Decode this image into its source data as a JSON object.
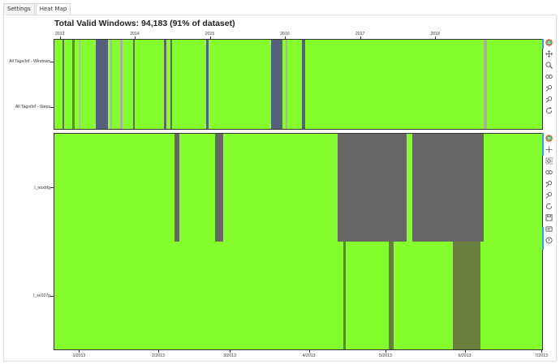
{
  "tabs": [
    {
      "label": "Settings",
      "active": false
    },
    {
      "label": "Heat Map",
      "active": true
    }
  ],
  "title": "Total Valid Windows: 94,183 (91% of dataset)",
  "colors": {
    "valid": "#84ff2d",
    "invalid": "#666666",
    "partial": "#6a7f3e",
    "mixed": "#55607a",
    "light": "#aab09e"
  },
  "top_plot": {
    "rows": [
      "All Tags/Inf - Windows",
      "All Tags/Inf - Steps"
    ],
    "x_ticks": [
      "2013",
      "2014",
      "2015",
      "2016",
      "2017",
      "2018"
    ]
  },
  "bottom_plot": {
    "rows": [
      "l_noxbfg",
      "l_sv107g"
    ],
    "x_ticks": [
      "1/2013",
      "2/2013",
      "3/2013",
      "4/2013",
      "5/2013",
      "6/2013",
      "7/2013"
    ]
  },
  "chart_data": [
    {
      "type": "heatmap",
      "title": "Total Valid Windows: 94,183 (91% of dataset)",
      "x_range": [
        "2012-12-01",
        "2019-06-01"
      ],
      "x_ticks": [
        "2013",
        "2014",
        "2015",
        "2016",
        "2017",
        "2018"
      ],
      "y_categories": [
        "All Tags/Inf - Windows",
        "All Tags/Inf - Steps"
      ],
      "invalid_intervals": [
        {
          "start": "2013-01-10",
          "end": "2013-01-16",
          "state": "invalid"
        },
        {
          "start": "2013-02-25",
          "end": "2013-03-10",
          "state": "partial"
        },
        {
          "start": "2013-04-01",
          "end": "2013-04-05",
          "state": "light"
        },
        {
          "start": "2013-06-20",
          "end": "2013-08-20",
          "state": "mixed"
        },
        {
          "start": "2013-09-01",
          "end": "2013-09-08",
          "state": "light"
        },
        {
          "start": "2013-10-15",
          "end": "2013-10-30",
          "state": "light"
        },
        {
          "start": "2013-12-20",
          "end": "2013-12-26",
          "state": "invalid"
        },
        {
          "start": "2014-05-20",
          "end": "2014-05-28",
          "state": "invalid"
        },
        {
          "start": "2014-06-20",
          "end": "2014-06-26",
          "state": "invalid"
        },
        {
          "start": "2014-12-10",
          "end": "2014-12-20",
          "state": "mixed"
        },
        {
          "start": "2015-10-20",
          "end": "2015-12-15",
          "state": "mixed"
        },
        {
          "start": "2016-01-02",
          "end": "2016-01-08",
          "state": "light"
        },
        {
          "start": "2016-03-20",
          "end": "2016-04-05",
          "state": "mixed"
        },
        {
          "start": "2018-08-20",
          "end": "2018-09-05",
          "state": "light"
        }
      ]
    },
    {
      "type": "heatmap",
      "x_range": [
        "2012-12-22",
        "2013-07-01"
      ],
      "x_ticks": [
        "1/2013",
        "2/2013",
        "3/2013",
        "4/2013",
        "5/2013",
        "6/2013",
        "7/2013"
      ],
      "y_categories": [
        "l_noxbfg",
        "l_sv107g"
      ],
      "invalid_intervals": [
        {
          "row": "l_noxbfg",
          "start": "2013-02-07",
          "end": "2013-02-09",
          "state": "invalid"
        },
        {
          "row": "l_noxbfg",
          "start": "2013-02-23",
          "end": "2013-02-26",
          "state": "invalid"
        },
        {
          "row": "l_noxbfg",
          "start": "2013-04-12",
          "end": "2013-05-09",
          "state": "invalid"
        },
        {
          "row": "l_noxbfg",
          "start": "2013-05-11",
          "end": "2013-06-08",
          "state": "invalid"
        },
        {
          "row": "l_sv107g",
          "start": "2013-04-14",
          "end": "2013-04-15",
          "state": "partial"
        },
        {
          "row": "l_sv107g",
          "start": "2013-05-02",
          "end": "2013-05-04",
          "state": "partial"
        },
        {
          "row": "l_sv107g",
          "start": "2013-05-27",
          "end": "2013-06-07",
          "state": "partial"
        }
      ]
    }
  ]
}
